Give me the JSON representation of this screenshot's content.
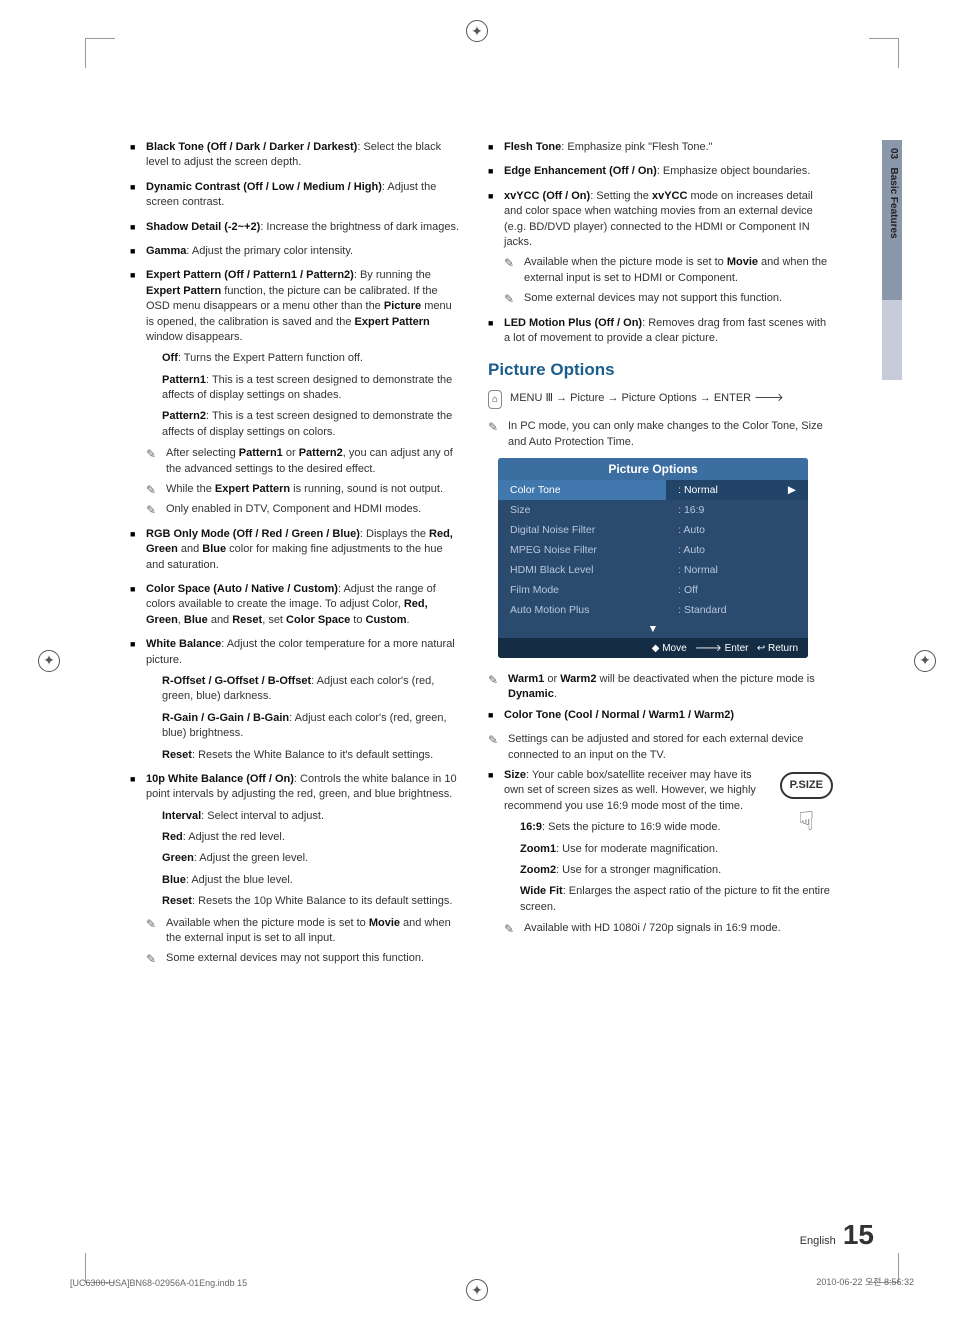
{
  "side": {
    "chapter": "03",
    "label": "Basic Features"
  },
  "left": {
    "items": [
      {
        "title": "Black Tone (Off / Dark / Darker / Darkest)",
        "desc": ": Select the black level to adjust the screen depth."
      },
      {
        "title": "Dynamic Contrast (Off / Low / Medium / High)",
        "desc": ": Adjust the screen contrast."
      },
      {
        "title": "Shadow Detail (-2~+2)",
        "desc": ": Increase the brightness of dark images."
      },
      {
        "title": "Gamma",
        "desc": ": Adjust the primary color intensity."
      },
      {
        "title": "Expert Pattern (Off / Pattern1 / Pattern2)",
        "desc": ": By running the Expert Pattern function, the picture can be calibrated. If the OSD menu disappears or a menu other than the Picture menu is opened, the calibration is saved and the Expert Pattern window disappears.",
        "subs": [
          {
            "b": "Off",
            "t": ": Turns the Expert Pattern function off."
          },
          {
            "b": "Pattern1",
            "t": ": This is a test screen designed to demonstrate the affects of display settings on shades."
          },
          {
            "b": "Pattern2",
            "t": ": This is a test screen designed to demonstrate the affects of display settings on colors."
          }
        ],
        "notes": [
          "After selecting Pattern1 or Pattern2, you can adjust any of the advanced settings to the desired effect.",
          "While the Expert Pattern is running, sound is not output.",
          "Only enabled in DTV, Component and HDMI modes."
        ]
      },
      {
        "title": "RGB Only Mode (Off / Red / Green / Blue)",
        "desc": ": Displays the Red, Green and Blue color for making fine adjustments to the hue and saturation."
      },
      {
        "title": "Color Space (Auto / Native / Custom)",
        "desc": ": Adjust the range of colors available to create the image. To adjust Color, Red, Green, Blue and Reset, set Color Space to Custom."
      },
      {
        "title": "White Balance",
        "desc": ": Adjust the color temperature for a more natural picture.",
        "subs": [
          {
            "b": "R-Offset / G-Offset / B-Offset",
            "t": ": Adjust each color's (red, green, blue) darkness."
          },
          {
            "b": "R-Gain / G-Gain / B-Gain",
            "t": ": Adjust each color's (red, green, blue) brightness."
          },
          {
            "b": "Reset",
            "t": ": Resets the White Balance to it's default settings."
          }
        ]
      },
      {
        "title": "10p White Balance (Off / On)",
        "desc": ": Controls the white balance in 10 point intervals by adjusting the red, green, and blue brightness.",
        "notes": [
          "Available when the picture mode is set to Movie and when the external input is set to all input.",
          "Some external devices may not support this function."
        ],
        "subs": [
          {
            "b": "Interval",
            "t": ": Select interval to adjust."
          },
          {
            "b": "Red",
            "t": ": Adjust the red level."
          },
          {
            "b": "Green",
            "t": ": Adjust the green level."
          },
          {
            "b": "Blue",
            "t": ": Adjust the blue level."
          },
          {
            "b": "Reset",
            "t": ": Resets the 10p White Balance to its default settings."
          }
        ]
      }
    ]
  },
  "right": {
    "top_items": [
      {
        "title": "Flesh Tone",
        "desc": ": Emphasize pink \"Flesh Tone.\""
      },
      {
        "title": "Edge Enhancement (Off / On)",
        "desc": ": Emphasize object boundaries."
      },
      {
        "title": "xvYCC (Off / On)",
        "desc": ": Setting the xvYCC mode on increases detail and color space when watching movies from an external device (e.g. BD/DVD player) connected to the HDMI or Component IN jacks.",
        "notes": [
          "Available when the picture mode is set to Movie and when the external input is set to HDMI or Component.",
          "Some external devices may not support this function."
        ]
      },
      {
        "title": "LED Motion Plus (Off / On)",
        "desc": ": Removes drag from fast scenes with a lot of movement to provide a clear picture."
      }
    ],
    "section_title": "Picture Options",
    "menu_path": "MENU Ⅲ → Picture → Picture Options → ENTER 🡒",
    "pc_note": "In PC mode, you can only make changes to the Color Tone, Size and Auto Protection Time.",
    "options_box": {
      "title": "Picture Options",
      "rows": [
        {
          "label": "Color Tone",
          "value": ": Normal",
          "hl": true,
          "arrow": "▶"
        },
        {
          "label": "Size",
          "value": ": 16:9"
        },
        {
          "label": "Digital Noise Filter",
          "value": ": Auto"
        },
        {
          "label": "MPEG Noise Filter",
          "value": ": Auto"
        },
        {
          "label": "HDMI Black Level",
          "value": ": Normal"
        },
        {
          "label": "Film Mode",
          "value": ": Off"
        },
        {
          "label": "Auto Motion Plus",
          "value": ": Standard"
        }
      ],
      "scroll": "▼",
      "footer": {
        "move": "◆ Move",
        "enter": "🡒 Enter",
        "ret": "↩ Return"
      }
    },
    "bottom_items": [
      {
        "title": "Color Tone (Cool / Normal / Warm1 / Warm2)",
        "desc": "",
        "notes_outside": [
          "Warm1 or Warm2 will be deactivated when the picture mode is Dynamic.",
          "Settings can be adjusted and stored for each external device connected to an input on the TV."
        ]
      },
      {
        "title": "Size",
        "desc": ": Your cable box/satellite receiver may have its own set of screen sizes as well. However, we highly recommend you use 16:9 mode most of the time.",
        "psize": true,
        "subs": [
          {
            "b": "16:9",
            "t": ": Sets the picture to 16:9 wide mode."
          },
          {
            "b": "Zoom1",
            "t": ": Use for moderate magnification."
          },
          {
            "b": "Zoom2",
            "t": ": Use for a stronger magnification."
          },
          {
            "b": "Wide Fit",
            "t": ": Enlarges the aspect ratio of the picture to fit the entire screen."
          }
        ],
        "notes": [
          "Available with HD 1080i / 720p signals in 16:9 mode."
        ]
      }
    ],
    "psize_label": "P.SIZE"
  },
  "page_footer": {
    "lang": "English",
    "num": "15"
  },
  "bottom_left": "[UC6300-USA]BN68-02956A-01Eng.indb   15",
  "bottom_right": "2010-06-22   오전 8:56:32"
}
